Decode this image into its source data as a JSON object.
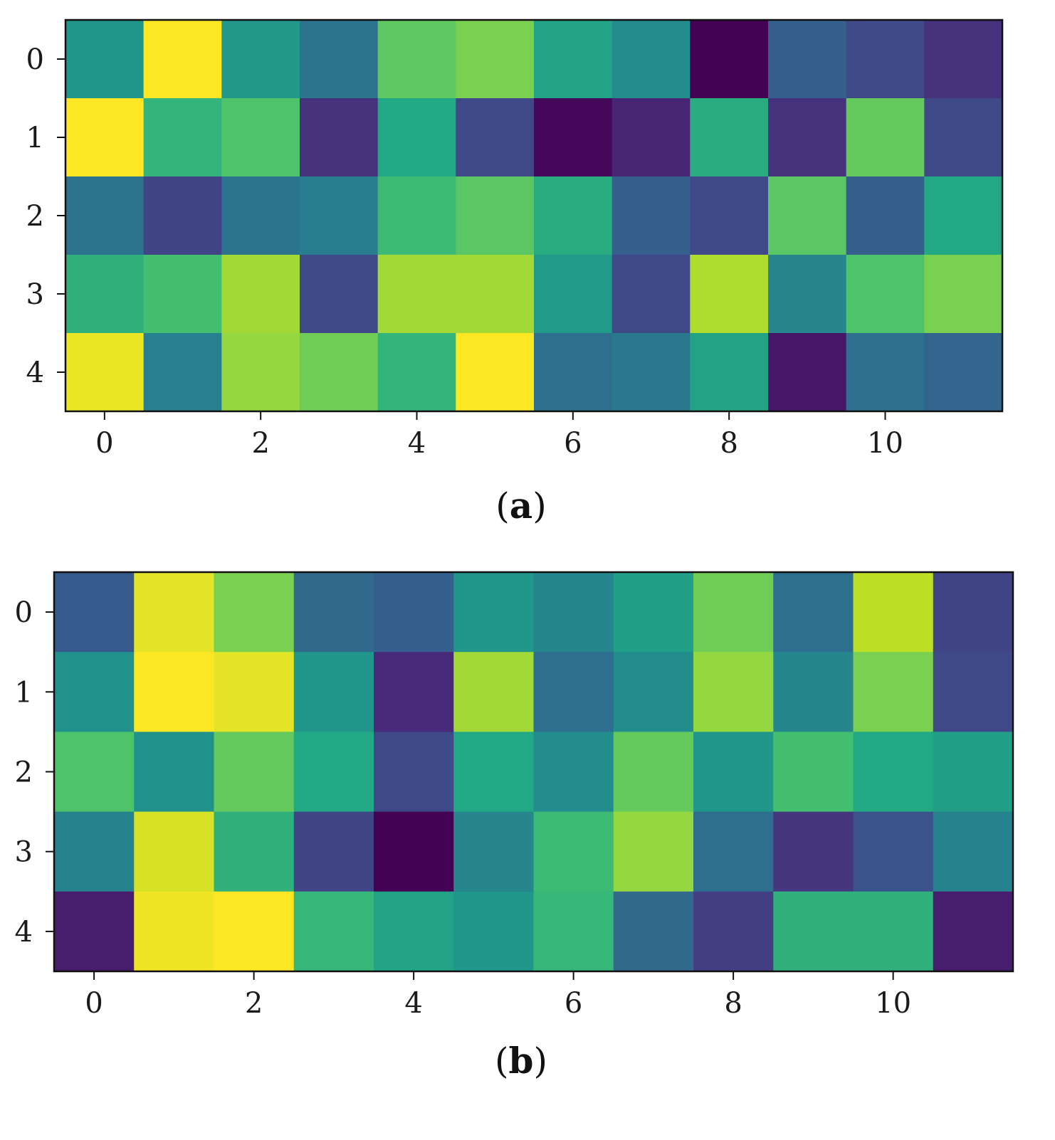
{
  "chart_data": [
    {
      "type": "heatmap",
      "panel_label": "a",
      "xlabel": "",
      "ylabel": "",
      "x_ticks": [
        0,
        2,
        4,
        6,
        8,
        10
      ],
      "y_ticks": [
        0,
        1,
        2,
        3,
        4
      ],
      "n_cols": 12,
      "n_rows": 5,
      "colormap": "viridis",
      "vrange": [
        0,
        1
      ],
      "values": [
        [
          0.52,
          1.0,
          0.53,
          0.38,
          0.75,
          0.8,
          0.58,
          0.48,
          0.0,
          0.3,
          0.22,
          0.14
        ],
        [
          1.0,
          0.65,
          0.72,
          0.14,
          0.6,
          0.22,
          0.02,
          0.1,
          0.62,
          0.14,
          0.76,
          0.22
        ],
        [
          0.38,
          0.2,
          0.38,
          0.42,
          0.68,
          0.74,
          0.62,
          0.3,
          0.22,
          0.74,
          0.3,
          0.6
        ],
        [
          0.64,
          0.7,
          0.86,
          0.22,
          0.86,
          0.86,
          0.54,
          0.22,
          0.88,
          0.45,
          0.72,
          0.8
        ],
        [
          0.97,
          0.43,
          0.84,
          0.78,
          0.65,
          1.0,
          0.36,
          0.4,
          0.58,
          0.06,
          0.36,
          0.32
        ]
      ]
    },
    {
      "type": "heatmap",
      "panel_label": "b",
      "xlabel": "",
      "ylabel": "",
      "x_ticks": [
        0,
        2,
        4,
        6,
        8,
        10
      ],
      "y_ticks": [
        0,
        1,
        2,
        3,
        4
      ],
      "n_cols": 12,
      "n_rows": 5,
      "colormap": "viridis",
      "vrange": [
        0,
        1
      ],
      "values": [
        [
          0.28,
          0.96,
          0.8,
          0.34,
          0.3,
          0.52,
          0.46,
          0.56,
          0.78,
          0.36,
          0.9,
          0.2
        ],
        [
          0.5,
          1.0,
          0.96,
          0.52,
          0.12,
          0.86,
          0.36,
          0.48,
          0.84,
          0.46,
          0.8,
          0.22
        ],
        [
          0.72,
          0.5,
          0.76,
          0.6,
          0.22,
          0.6,
          0.48,
          0.76,
          0.52,
          0.7,
          0.6,
          0.56
        ],
        [
          0.44,
          0.94,
          0.64,
          0.2,
          0.0,
          0.45,
          0.68,
          0.84,
          0.36,
          0.16,
          0.26,
          0.44
        ],
        [
          0.08,
          0.98,
          1.0,
          0.66,
          0.58,
          0.52,
          0.66,
          0.34,
          0.18,
          0.64,
          0.64,
          0.08
        ]
      ]
    }
  ]
}
